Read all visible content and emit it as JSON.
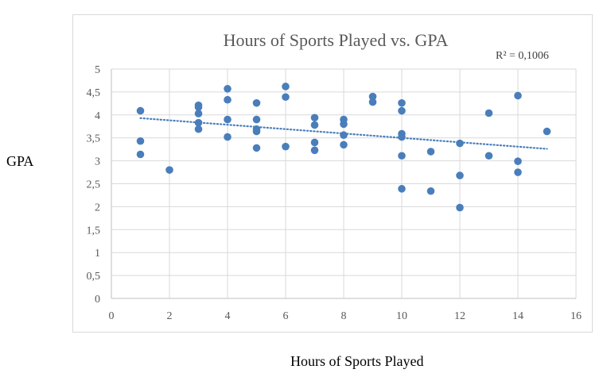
{
  "chart_data": {
    "type": "scatter",
    "title": "Hours of Sports Played vs. GPA",
    "xlabel": "Hours of Sports Played",
    "ylabel": "GPA",
    "xlim": [
      0,
      16
    ],
    "ylim": [
      0,
      5
    ],
    "x_ticks": [
      {
        "value": 0,
        "label": "0"
      },
      {
        "value": 2,
        "label": "2"
      },
      {
        "value": 4,
        "label": "4"
      },
      {
        "value": 6,
        "label": "6"
      },
      {
        "value": 8,
        "label": "8"
      },
      {
        "value": 10,
        "label": "10"
      },
      {
        "value": 12,
        "label": "12"
      },
      {
        "value": 14,
        "label": "14"
      },
      {
        "value": 16,
        "label": "16"
      }
    ],
    "y_ticks": [
      {
        "value": 0,
        "label": "0"
      },
      {
        "value": 0.5,
        "label": "0,5"
      },
      {
        "value": 1,
        "label": "1"
      },
      {
        "value": 1.5,
        "label": "1,5"
      },
      {
        "value": 2,
        "label": "2"
      },
      {
        "value": 2.5,
        "label": "2,5"
      },
      {
        "value": 3,
        "label": "3"
      },
      {
        "value": 3.5,
        "label": "3,5"
      },
      {
        "value": 4,
        "label": "4"
      },
      {
        "value": 4.5,
        "label": "4,5"
      },
      {
        "value": 5,
        "label": "5"
      }
    ],
    "grid": {
      "horizontal": true,
      "vertical": true
    },
    "legend": "none",
    "series": [
      {
        "color": "#4a7ebb",
        "points": [
          {
            "x": 1,
            "y": 4.09
          },
          {
            "x": 1,
            "y": 3.43
          },
          {
            "x": 1,
            "y": 3.14
          },
          {
            "x": 2,
            "y": 2.8
          },
          {
            "x": 3,
            "y": 4.21
          },
          {
            "x": 3,
            "y": 4.17
          },
          {
            "x": 3,
            "y": 4.03
          },
          {
            "x": 3,
            "y": 3.83
          },
          {
            "x": 3,
            "y": 3.69
          },
          {
            "x": 4,
            "y": 4.57
          },
          {
            "x": 4,
            "y": 4.33
          },
          {
            "x": 4,
            "y": 3.9
          },
          {
            "x": 4,
            "y": 3.52
          },
          {
            "x": 5,
            "y": 4.26
          },
          {
            "x": 5,
            "y": 3.9
          },
          {
            "x": 5,
            "y": 3.69
          },
          {
            "x": 5,
            "y": 3.64
          },
          {
            "x": 5,
            "y": 3.28
          },
          {
            "x": 6,
            "y": 4.62
          },
          {
            "x": 6,
            "y": 4.39
          },
          {
            "x": 6,
            "y": 3.31
          },
          {
            "x": 7,
            "y": 3.94
          },
          {
            "x": 7,
            "y": 3.78
          },
          {
            "x": 7,
            "y": 3.4
          },
          {
            "x": 7,
            "y": 3.23
          },
          {
            "x": 8,
            "y": 3.9
          },
          {
            "x": 8,
            "y": 3.8
          },
          {
            "x": 8,
            "y": 3.56
          },
          {
            "x": 8,
            "y": 3.35
          },
          {
            "x": 9,
            "y": 4.4
          },
          {
            "x": 9,
            "y": 4.28
          },
          {
            "x": 10,
            "y": 4.26
          },
          {
            "x": 10,
            "y": 4.09
          },
          {
            "x": 10,
            "y": 3.59
          },
          {
            "x": 10,
            "y": 3.52
          },
          {
            "x": 10,
            "y": 3.11
          },
          {
            "x": 10,
            "y": 2.39
          },
          {
            "x": 11,
            "y": 3.2
          },
          {
            "x": 11,
            "y": 2.34
          },
          {
            "x": 12,
            "y": 3.38
          },
          {
            "x": 12,
            "y": 2.68
          },
          {
            "x": 12,
            "y": 1.98
          },
          {
            "x": 13,
            "y": 4.04
          },
          {
            "x": 13,
            "y": 3.11
          },
          {
            "x": 14,
            "y": 4.42
          },
          {
            "x": 14,
            "y": 2.99
          },
          {
            "x": 14,
            "y": 2.75
          },
          {
            "x": 15,
            "y": 3.64
          }
        ]
      }
    ],
    "trendline": {
      "type": "linear",
      "style": "dotted",
      "color": "#4a7ebb",
      "start": {
        "x": 1,
        "y": 3.93
      },
      "end": {
        "x": 15,
        "y": 3.26
      },
      "r_squared_label": "R² = 0,1006"
    }
  }
}
